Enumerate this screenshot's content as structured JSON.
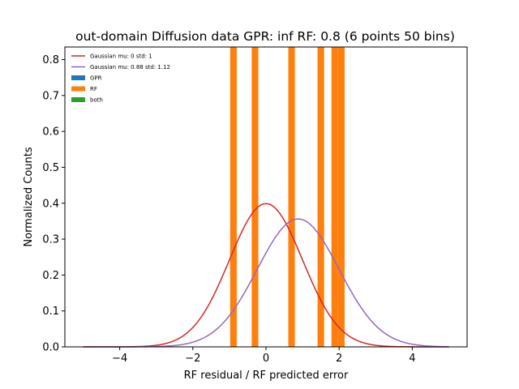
{
  "chart_data": {
    "type": "bar",
    "title": "out-domain Diffusion data GPR: inf RF: 0.8 (6 points 50 bins)",
    "xlabel": "RF residual / RF predicted error",
    "ylabel": "Normalized Counts",
    "xlim": [
      -5.5,
      5.5
    ],
    "ylim": [
      0,
      0.835
    ],
    "xticks": [
      -4,
      -2,
      0,
      2,
      4
    ],
    "xtick_labels": [
      "−4",
      "−2",
      "0",
      "2",
      "4"
    ],
    "yticks": [
      0.0,
      0.1,
      0.2,
      0.3,
      0.4,
      0.5,
      0.6,
      0.7,
      0.8
    ],
    "ytick_labels": [
      "0.0",
      "0.1",
      "0.2",
      "0.3",
      "0.4",
      "0.5",
      "0.6",
      "0.7",
      "0.8"
    ],
    "grid": false,
    "legend_placement": "top-left",
    "bars": {
      "name": "RF",
      "color": "#ff7f0e",
      "bins": [
        {
          "x0": -0.98,
          "x1": -0.8,
          "value": 0.835
        },
        {
          "x0": -0.39,
          "x1": -0.21,
          "value": 0.835
        },
        {
          "x0": 0.61,
          "x1": 0.79,
          "value": 0.835
        },
        {
          "x0": 1.41,
          "x1": 1.59,
          "value": 0.835
        },
        {
          "x0": 1.79,
          "x1": 1.97,
          "value": 0.835
        },
        {
          "x0": 1.97,
          "x1": 2.15,
          "value": 0.835
        }
      ]
    },
    "curves": [
      {
        "name": "Gaussian mu: 0 std: 1",
        "mu": 0,
        "std": 1,
        "color": "#d62728",
        "x_range": [
          -5,
          5
        ]
      },
      {
        "name": "Gaussian mu: 0.88 std: 1.12",
        "mu": 0.88,
        "std": 1.12,
        "color": "#9467bd",
        "x_range": [
          -5,
          5
        ]
      }
    ],
    "legend": [
      {
        "label": "Gaussian mu: 0 std: 1",
        "kind": "line",
        "color": "#d62728"
      },
      {
        "label": "Gaussian mu: 0.88 std: 1.12",
        "kind": "line",
        "color": "#9467bd"
      },
      {
        "label": "GPR",
        "kind": "patch",
        "color": "#1f77b4"
      },
      {
        "label": "RF",
        "kind": "patch",
        "color": "#ff7f0e"
      },
      {
        "label": "both",
        "kind": "patch",
        "color": "#2ca02c"
      }
    ]
  }
}
